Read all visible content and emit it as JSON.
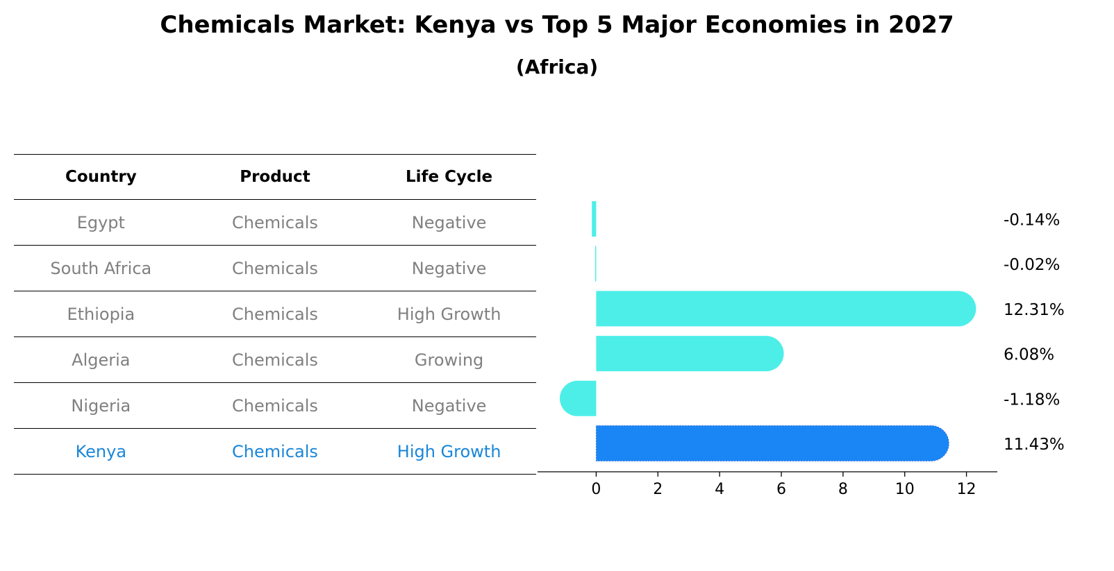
{
  "title": "Chemicals Market: Kenya vs Top 5 Major Economies in 2027",
  "subtitle": "(Africa)",
  "table": {
    "headers": [
      "Country",
      "Product",
      "Life Cycle"
    ],
    "rows": [
      {
        "country": "Egypt",
        "product": "Chemicals",
        "life_cycle": "Negative"
      },
      {
        "country": "South Africa",
        "product": "Chemicals",
        "life_cycle": "Negative"
      },
      {
        "country": "Ethiopia",
        "product": "Chemicals",
        "life_cycle": "High Growth"
      },
      {
        "country": "Algeria",
        "product": "Chemicals",
        "life_cycle": "Growing"
      },
      {
        "country": "Nigeria",
        "product": "Chemicals",
        "life_cycle": "Negative"
      },
      {
        "country": "Kenya",
        "product": "Chemicals",
        "life_cycle": "High Growth"
      }
    ]
  },
  "colors": {
    "bar": "#4deee8",
    "highlight": "#1a86f5",
    "text_muted": "#808080",
    "text_highlight": "#1a86d8"
  },
  "chart_data": {
    "type": "bar",
    "orientation": "horizontal",
    "categories": [
      "Egypt",
      "South Africa",
      "Ethiopia",
      "Algeria",
      "Nigeria",
      "Kenya"
    ],
    "values": [
      -0.14,
      -0.02,
      12.31,
      6.08,
      -1.18,
      11.43
    ],
    "labels": [
      "-0.14%",
      "-0.02%",
      "12.31%",
      "6.08%",
      "-1.18%",
      "11.43%"
    ],
    "highlight": "Kenya",
    "xlim": [
      -1.9,
      13.0
    ],
    "xticks": [
      0,
      2,
      4,
      6,
      8,
      10,
      12
    ],
    "xlabel": "",
    "ylabel": ""
  }
}
